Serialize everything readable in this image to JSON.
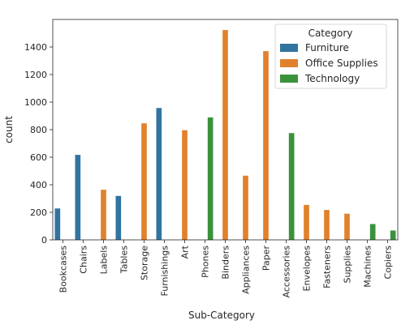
{
  "chart_data": {
    "type": "bar",
    "xlabel": "Sub-Category",
    "ylabel": "count",
    "ylim": [
      0,
      1600
    ],
    "yticks": [
      0,
      200,
      400,
      600,
      800,
      1000,
      1200,
      1400
    ],
    "grid": false,
    "legend": {
      "title": "Category",
      "placement": "top-right"
    },
    "categories": [
      "Bookcases",
      "Chairs",
      "Labels",
      "Tables",
      "Storage",
      "Furnishings",
      "Art",
      "Phones",
      "Binders",
      "Appliances",
      "Paper",
      "Accessories",
      "Envelopes",
      "Fasteners",
      "Supplies",
      "Machines",
      "Copiers"
    ],
    "series": [
      {
        "name": "Furniture",
        "color": "#3274a1",
        "values": [
          228,
          617,
          null,
          319,
          null,
          957,
          null,
          null,
          null,
          null,
          null,
          null,
          null,
          null,
          null,
          null,
          null
        ]
      },
      {
        "name": "Office Supplies",
        "color": "#e1812c",
        "values": [
          null,
          null,
          364,
          null,
          846,
          null,
          796,
          null,
          1523,
          466,
          1370,
          null,
          254,
          217,
          190,
          null,
          null
        ]
      },
      {
        "name": "Technology",
        "color": "#3a923a",
        "values": [
          null,
          null,
          null,
          null,
          null,
          null,
          null,
          889,
          null,
          null,
          null,
          775,
          null,
          null,
          null,
          115,
          68
        ]
      }
    ]
  }
}
